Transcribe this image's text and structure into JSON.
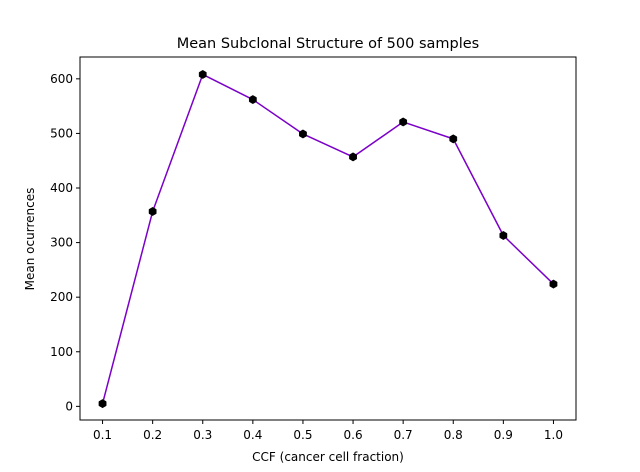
{
  "chart_data": {
    "type": "line",
    "title": "Mean Subclonal Structure of 500 samples",
    "xlabel": "CCF (cancer cell fraction)",
    "ylabel": "Mean ocurrences",
    "x": [
      0.1,
      0.2,
      0.3,
      0.4,
      0.5,
      0.6,
      0.7,
      0.8,
      0.9,
      1.0
    ],
    "x_tick_labels": [
      "0.1",
      "0.2",
      "0.3",
      "0.4",
      "0.5",
      "0.6",
      "0.7",
      "0.8",
      "0.9",
      "1.0"
    ],
    "y_ticks": [
      0,
      100,
      200,
      300,
      400,
      500,
      600
    ],
    "y_tick_labels": [
      "0",
      "100",
      "200",
      "300",
      "400",
      "500",
      "600"
    ],
    "xlim": [
      0.055,
      1.045
    ],
    "ylim": [
      -25,
      640
    ],
    "grid": false,
    "series": [
      {
        "values": [
          5,
          357,
          608,
          562,
          499,
          457,
          521,
          490,
          313,
          224
        ],
        "line_color": "#7b00c8",
        "marker_color": "#000000",
        "marker": "hexagon"
      }
    ]
  }
}
